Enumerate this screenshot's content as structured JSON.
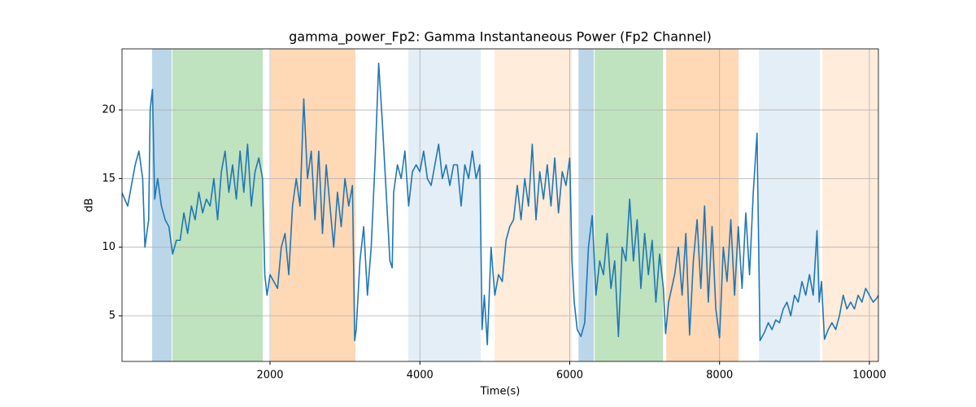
{
  "chart_data": {
    "type": "line",
    "title": "gamma_power_Fp2: Gamma Instantaneous Power (Fp2 Channel)",
    "xlabel": "Time(s)",
    "ylabel": "dB",
    "x": [
      20,
      100,
      200,
      250,
      300,
      330,
      380,
      400,
      430,
      460,
      500,
      550,
      600,
      650,
      700,
      750,
      800,
      850,
      900,
      950,
      1000,
      1050,
      1100,
      1150,
      1200,
      1250,
      1300,
      1350,
      1400,
      1450,
      1500,
      1550,
      1600,
      1650,
      1700,
      1750,
      1800,
      1850,
      1900,
      1930,
      1960,
      2000,
      2050,
      2100,
      2150,
      2200,
      2250,
      2300,
      2350,
      2400,
      2450,
      2500,
      2550,
      2600,
      2650,
      2700,
      2750,
      2800,
      2850,
      2900,
      2950,
      3000,
      3050,
      3100,
      3130,
      3150,
      3200,
      3250,
      3300,
      3350,
      3400,
      3450,
      3500,
      3550,
      3600,
      3630,
      3650,
      3700,
      3750,
      3800,
      3850,
      3900,
      3950,
      4000,
      4050,
      4100,
      4150,
      4200,
      4250,
      4300,
      4350,
      4400,
      4450,
      4500,
      4550,
      4600,
      4650,
      4700,
      4750,
      4800,
      4830,
      4860,
      4900,
      4950,
      5000,
      5050,
      5100,
      5150,
      5200,
      5250,
      5300,
      5350,
      5400,
      5450,
      5500,
      5550,
      5600,
      5650,
      5700,
      5750,
      5800,
      5850,
      5900,
      5950,
      6000,
      6030,
      6060,
      6100,
      6150,
      6200,
      6250,
      6300,
      6350,
      6400,
      6450,
      6500,
      6550,
      6600,
      6650,
      6700,
      6750,
      6800,
      6850,
      6900,
      6950,
      7000,
      7050,
      7100,
      7150,
      7200,
      7250,
      7280,
      7320,
      7400,
      7450,
      7500,
      7550,
      7600,
      7650,
      7700,
      7750,
      7800,
      7850,
      7900,
      7950,
      8000,
      8050,
      8100,
      8150,
      8200,
      8250,
      8300,
      8350,
      8400,
      8450,
      8500,
      8540,
      8600,
      8650,
      8700,
      8750,
      8800,
      8850,
      8900,
      8950,
      9000,
      9050,
      9100,
      9150,
      9200,
      9250,
      9300,
      9330,
      9360,
      9400,
      9450,
      9500,
      9550,
      9600,
      9650,
      9700,
      9750,
      9800,
      9850,
      9900,
      9950,
      10000,
      10050,
      10100,
      10120
    ],
    "series": [
      {
        "color": "#1f77b4",
        "values": [
          14,
          13,
          16,
          17,
          15,
          10,
          12,
          20,
          21.5,
          13.5,
          15,
          13,
          12,
          11.5,
          9.5,
          10.5,
          10.5,
          12.5,
          11,
          13,
          12,
          14,
          12.5,
          13.5,
          13,
          15,
          12,
          15.5,
          17,
          14,
          16,
          13.5,
          17,
          14,
          17.5,
          13,
          15.5,
          16.5,
          15,
          8,
          6.5,
          8,
          7.5,
          7,
          10,
          11,
          8,
          13,
          15,
          13,
          20.8,
          15,
          17,
          12,
          17,
          11,
          16,
          13,
          10,
          14,
          11.5,
          15,
          13,
          14.5,
          3.2,
          4,
          9,
          11.5,
          6.5,
          10,
          16,
          23.4,
          19,
          14,
          9,
          8.5,
          14,
          16,
          15,
          17,
          13,
          15.5,
          16,
          15.5,
          17,
          15,
          14.5,
          16,
          17.5,
          15,
          16,
          14.5,
          16,
          16,
          13,
          16,
          15,
          17,
          15,
          16,
          4,
          6.5,
          2.9,
          10,
          6.5,
          8,
          7.5,
          10.5,
          11.5,
          12,
          14.5,
          12,
          15,
          13,
          17.5,
          12,
          15.5,
          13.5,
          16,
          13,
          16.5,
          12.5,
          15.5,
          14.5,
          16.5,
          9,
          6,
          4,
          3.5,
          4.5,
          10,
          12.3,
          6.5,
          9,
          8,
          11,
          7,
          9,
          3.5,
          10,
          9,
          13.5,
          9,
          12,
          7,
          11,
          8,
          10.5,
          6,
          9.5,
          7,
          3.7,
          6,
          8,
          10,
          6.5,
          11,
          3.6,
          9,
          12,
          7,
          13,
          6,
          11.5,
          5.5,
          3.4,
          10,
          7.5,
          12,
          6.5,
          11.5,
          7,
          12.5,
          8,
          14,
          18.3,
          3.2,
          3.8,
          4.5,
          4,
          4.7,
          4.5,
          5.5,
          6,
          5,
          6.5,
          6,
          7.5,
          6.5,
          8,
          6.5,
          11.2,
          6,
          7.5,
          3.3,
          4,
          4.5,
          4,
          5,
          6.5,
          5.5,
          6,
          5.5,
          6.5,
          6,
          7,
          6.5,
          6,
          6.3,
          6.5
        ]
      }
    ],
    "spans": [
      {
        "start": 426,
        "end": 687,
        "color": "#1f77b4",
        "opacity": 0.3
      },
      {
        "start": 697,
        "end": 1903,
        "color": "#2ca02c",
        "opacity": 0.3
      },
      {
        "start": 2010,
        "end": 3140,
        "color": "#ff7f0e",
        "opacity": 0.3
      },
      {
        "start": 3845,
        "end": 4812,
        "color": "#1f77b4",
        "opacity": 0.12
      },
      {
        "start": 4997,
        "end": 6029,
        "color": "#ff7f0e",
        "opacity": 0.15
      },
      {
        "start": 6117,
        "end": 6322,
        "color": "#1f77b4",
        "opacity": 0.3
      },
      {
        "start": 6333,
        "end": 7245,
        "color": "#2ca02c",
        "opacity": 0.3
      },
      {
        "start": 7288,
        "end": 8254,
        "color": "#ff7f0e",
        "opacity": 0.3
      },
      {
        "start": 8526,
        "end": 9340,
        "color": "#1f77b4",
        "opacity": 0.12
      },
      {
        "start": 9373,
        "end": 10120,
        "color": "#ff7f0e",
        "opacity": 0.15
      }
    ],
    "xlim": [
      24,
      10120
    ],
    "ylim": [
      1.68,
      24.45
    ],
    "xticks": [
      2000,
      4000,
      6000,
      8000,
      10000
    ],
    "yticks": [
      5,
      10,
      15,
      20
    ],
    "grid": true
  }
}
